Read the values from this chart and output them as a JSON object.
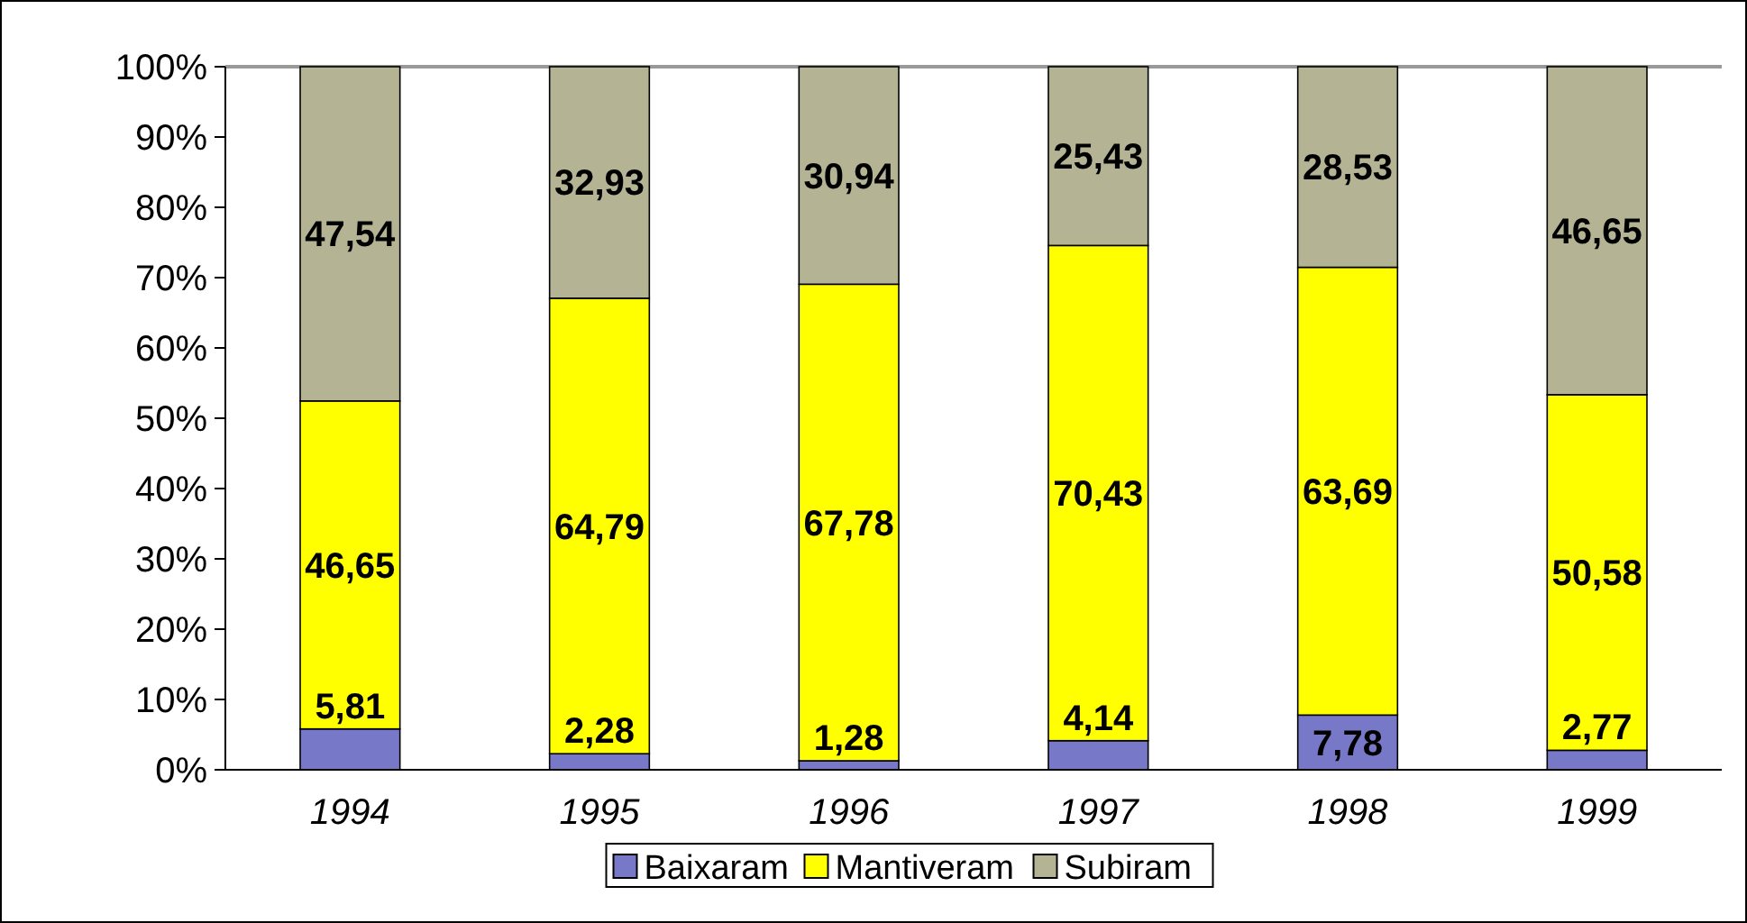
{
  "chart_data": {
    "type": "bar",
    "stacked": true,
    "categories": [
      "1994",
      "1995",
      "1996",
      "1997",
      "1998",
      "1999"
    ],
    "series": [
      {
        "name": "Baixaram",
        "color": "#7878c8",
        "values": [
          5.81,
          2.28,
          1.28,
          4.14,
          7.78,
          2.77
        ],
        "value_labels": [
          "5,81",
          "2,28",
          "1,28",
          "4,14",
          "7,78",
          "2,77"
        ]
      },
      {
        "name": "Mantiveram",
        "color": "#ffff00",
        "values": [
          46.65,
          64.79,
          67.78,
          70.43,
          63.69,
          50.58
        ],
        "value_labels": [
          "46,65",
          "64,79",
          "67,78",
          "70,43",
          "63,69",
          "50,58"
        ]
      },
      {
        "name": "Subiram",
        "color": "#b4b494",
        "values": [
          47.54,
          32.93,
          30.94,
          25.43,
          28.53,
          46.65
        ],
        "value_labels": [
          "47,54",
          "32,93",
          "30,94",
          "25,43",
          "28,53",
          "46,65"
        ]
      }
    ],
    "ylim": [
      0,
      100
    ],
    "yticks": [
      {
        "value": 0,
        "label": "0%"
      },
      {
        "value": 10,
        "label": "10%"
      },
      {
        "value": 20,
        "label": "20%"
      },
      {
        "value": 30,
        "label": "30%"
      },
      {
        "value": 40,
        "label": "40%"
      },
      {
        "value": 50,
        "label": "50%"
      },
      {
        "value": 60,
        "label": "60%"
      },
      {
        "value": 70,
        "label": "70%"
      },
      {
        "value": 80,
        "label": "80%"
      },
      {
        "value": 90,
        "label": "90%"
      },
      {
        "value": 100,
        "label": "100%"
      }
    ],
    "legend": "bottom"
  }
}
